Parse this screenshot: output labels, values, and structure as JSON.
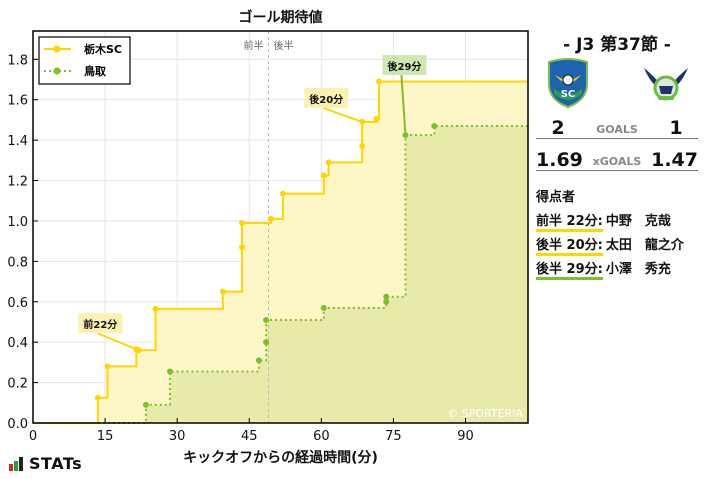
{
  "chart_data": {
    "type": "line",
    "subtype": "step",
    "title": "ゴール期待値",
    "xlabel": "キックオフからの経過時間(分)",
    "ylabel": "",
    "xlim": [
      0,
      103
    ],
    "ylim": [
      0,
      1.94
    ],
    "xticks": [
      0,
      15,
      30,
      45,
      60,
      75,
      90
    ],
    "yticks": [
      0.0,
      0.2,
      0.4,
      0.6,
      0.8,
      1.0,
      1.2,
      1.4,
      1.6,
      1.8
    ],
    "xtick_labels": [
      "0",
      "15",
      "30",
      "45",
      "60",
      "75",
      "90"
    ],
    "ytick_labels": [
      "0.0",
      "0.2",
      "0.4",
      "0.6",
      "0.8",
      "1.0",
      "1.2",
      "1.4",
      "1.6",
      "1.8"
    ],
    "grid": true,
    "legend_position": "upper left",
    "halftime_marker": {
      "x": 49,
      "left_label": "前半",
      "right_label": "後半"
    },
    "series": [
      {
        "name": "栃木SC",
        "color": "#ffd700",
        "fill": "#fdf5c4",
        "linestyle": "solid",
        "x": [
          13.5,
          15.5,
          21.5,
          22,
          25.5,
          39.5,
          43.5,
          43.5,
          49.5,
          52,
          60.5,
          61.5,
          68.5,
          68.5,
          71.5,
          72
        ],
        "y": [
          0.125,
          0.28,
          0.365,
          0.36,
          0.565,
          0.65,
          0.87,
          0.99,
          1.01,
          1.135,
          1.225,
          1.29,
          1.37,
          1.49,
          1.505,
          1.69
        ],
        "final": 1.69
      },
      {
        "name": "鳥取",
        "color": "#7dc12a",
        "fill": "#e6e9a6",
        "linestyle": "dotted",
        "x": [
          23.5,
          28.5,
          47,
          48.5,
          48.5,
          60.5,
          73.5,
          73.5,
          77.5,
          83.5
        ],
        "y": [
          0.09,
          0.255,
          0.31,
          0.4,
          0.51,
          0.57,
          0.6,
          0.625,
          1.425,
          1.47
        ],
        "final": 1.47
      }
    ],
    "annotations": [
      {
        "text": "前22分",
        "series": "栃木SC",
        "x": 21.5,
        "y": 0.365,
        "bg": "#fbf1b0"
      },
      {
        "text": "後20分",
        "series": "栃木SC",
        "x": 68.5,
        "y": 1.49,
        "bg": "#fbf1b0"
      },
      {
        "text": "後29分",
        "series": "鳥取",
        "x": 77.5,
        "y": 1.425,
        "bg": "#cfe8b3"
      }
    ],
    "watermark": "© SPORTERIA"
  },
  "header": {
    "title": "ゴール期待値"
  },
  "legend": {
    "items": [
      {
        "label": "栃木SC"
      },
      {
        "label": "鳥取"
      }
    ]
  },
  "halftime": {
    "first": "前半",
    "second": "後半"
  },
  "axes": {
    "xlabel": "キックオフからの経過時間(分)"
  },
  "watermark": "© SPORTERIA",
  "brand": {
    "logo_text": "STATs"
  },
  "match": {
    "matchday": "- J3 第37節 -",
    "home": {
      "name": "栃木SC",
      "crest": "tochigi-sc-crest",
      "goals": "2",
      "xg": "1.69"
    },
    "away": {
      "name": "鳥取",
      "crest": "gainare-tottori-crest",
      "goals": "1",
      "xg": "1.47"
    },
    "goals_label": "GOALS",
    "xg_label": "xGOALS"
  },
  "scorers": {
    "title": "得点者",
    "items": [
      {
        "time": "前半 22分:",
        "name": "中野　克哉",
        "team": "home"
      },
      {
        "time": "後半 20分:",
        "name": "太田　龍之介",
        "team": "home"
      },
      {
        "time": "後半 29分:",
        "name": "小澤　秀充",
        "team": "away"
      }
    ]
  }
}
